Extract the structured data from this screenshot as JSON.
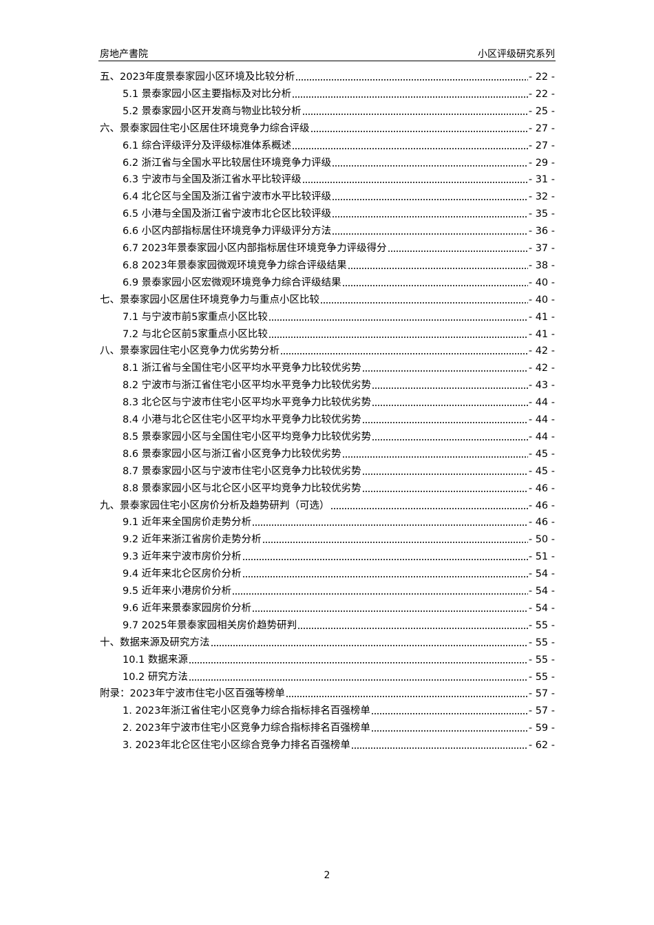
{
  "header": {
    "left": "房地产書院",
    "right": "小区评级研究系列"
  },
  "toc": [
    {
      "title": "五、2023年度景泰家园小区环境及比较分析",
      "page": "- 22 -",
      "items": [
        {
          "title": "5.1 景泰家园小区主要指标及对比分析",
          "page": "- 22 -"
        },
        {
          "title": "5.2 景泰家园小区开发商与物业比较分析",
          "page": "- 25 -"
        }
      ]
    },
    {
      "title": "六、景泰家园住宅小区居住环境竞争力综合评级",
      "page": "- 27 -",
      "items": [
        {
          "title": "6.1 综合评级评分及评级标准体系概述",
          "page": "- 27 -"
        },
        {
          "title": "6.2 浙江省与全国水平比较居住环境竞争力评级",
          "page": "- 29 -"
        },
        {
          "title": "6.3 宁波市与全国及浙江省水平比较评级",
          "page": "- 31 -"
        },
        {
          "title": "6.4 北仑区与全国及浙江省宁波市水平比较评级",
          "page": "- 32 -"
        },
        {
          "title": "6.5 小港与全国及浙江省宁波市北仑区比较评级",
          "page": "- 35 -"
        },
        {
          "title": "6.6 小区内部指标居住环境竞争力评级评分方法",
          "page": "- 36 -"
        },
        {
          "title": "6.7 2023年景泰家园小区内部指标居住环境竞争力评级得分",
          "page": "- 37 -"
        },
        {
          "title": "6.8 2023年景泰家园微观环境竞争力综合评级结果",
          "page": "- 38 -"
        },
        {
          "title": "6.9 景泰家园小区宏微观环境竞争力综合评级结果",
          "page": "- 40 -"
        }
      ]
    },
    {
      "title": "七、景泰家园小区居住环境竞争力与重点小区比较",
      "page": "- 40 -",
      "items": [
        {
          "title": "7.1 与宁波市前5家重点小区比较",
          "page": "- 41 -"
        },
        {
          "title": "7.2 与北仑区前5家重点小区比较",
          "page": "- 41 -"
        }
      ]
    },
    {
      "title": "八、景泰家园住宅小区竞争力优劣势分析",
      "page": "- 42 -",
      "items": [
        {
          "title": "8.1 浙江省与全国住宅小区平均水平竞争力比较优劣势",
          "page": "- 42 -"
        },
        {
          "title": "8.2 宁波市与浙江省住宅小区平均水平竞争力比较优劣势",
          "page": "- 43 -"
        },
        {
          "title": "8.3 北仑区与宁波市住宅小区平均水平竞争力比较优劣势",
          "page": "- 44 -"
        },
        {
          "title": "8.4 小港与北仑区住宅小区平均水平竞争力比较优劣势",
          "page": "- 44 -"
        },
        {
          "title": "8.5 景泰家园小区与全国住宅小区平均竞争力比较优劣势",
          "page": "- 44 -"
        },
        {
          "title": "8.6 景泰家园小区与浙江省小区竞争力比较优劣势",
          "page": "- 45 -"
        },
        {
          "title": "8.7 景泰家园小区与宁波市住宅小区竞争力比较优劣势",
          "page": "- 45 -"
        },
        {
          "title": "8.8 景泰家园小区与北仑区小区平均竞争力比较优劣势",
          "page": "- 46 -"
        }
      ]
    },
    {
      "title": "九、景泰家园住宅小区房价分析及趋势研判（可选）",
      "page": "- 46 -",
      "items": [
        {
          "title": "9.1 近年来全国房价走势分析",
          "page": "- 46 -"
        },
        {
          "title": "9.2 近年来浙江省房价走势分析",
          "page": "- 50 -"
        },
        {
          "title": "9.3 近年来宁波市房价分析",
          "page": "- 51 -"
        },
        {
          "title": "9.4 近年来北仑区房价分析",
          "page": "- 54 -"
        },
        {
          "title": "9.5 近年来小港房价分析",
          "page": "- 54 -"
        },
        {
          "title": "9.6 近年来景泰家园房价分析",
          "page": "- 54 -"
        },
        {
          "title": "9.7 2025年景泰家园相关房价趋势研判",
          "page": "- 55 -"
        }
      ]
    },
    {
      "title": "十、数据来源及研究方法",
      "page": "- 55 -",
      "items": [
        {
          "title": "10.1 数据来源",
          "page": "- 55 -"
        },
        {
          "title": "10.2 研究方法",
          "page": "- 55 -"
        }
      ]
    },
    {
      "title": "附录：2023年宁波市住宅小区百强等榜单",
      "page": "- 57 -",
      "items": [
        {
          "title": "1. 2023年浙江省住宅小区竞争力综合指标排名百强榜单",
          "page": "- 57 -"
        },
        {
          "title": "2. 2023年宁波市住宅小区竞争力综合指标排名百强榜单",
          "page": "- 59 -"
        },
        {
          "title": "3. 2023年北仑区住宅小区综合竞争力排名百强榜单",
          "page": "- 62 -"
        }
      ]
    }
  ],
  "footer": {
    "page_number": "2"
  }
}
